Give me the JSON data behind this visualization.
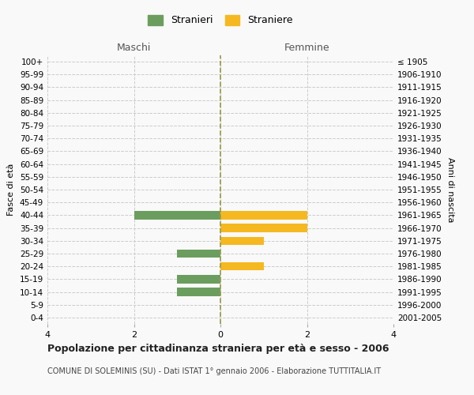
{
  "age_groups": [
    "100+",
    "95-99",
    "90-94",
    "85-89",
    "80-84",
    "75-79",
    "70-74",
    "65-69",
    "60-64",
    "55-59",
    "50-54",
    "45-49",
    "40-44",
    "35-39",
    "30-34",
    "25-29",
    "20-24",
    "15-19",
    "10-14",
    "5-9",
    "0-4"
  ],
  "birth_years": [
    "≤ 1905",
    "1906-1910",
    "1911-1915",
    "1916-1920",
    "1921-1925",
    "1926-1930",
    "1931-1935",
    "1936-1940",
    "1941-1945",
    "1946-1950",
    "1951-1955",
    "1956-1960",
    "1961-1965",
    "1966-1970",
    "1971-1975",
    "1976-1980",
    "1981-1985",
    "1986-1990",
    "1991-1995",
    "1996-2000",
    "2001-2005"
  ],
  "maschi": [
    0,
    0,
    0,
    0,
    0,
    0,
    0,
    0,
    0,
    0,
    0,
    0,
    2,
    0,
    0,
    1,
    0,
    1,
    1,
    0,
    0
  ],
  "femmine": [
    0,
    0,
    0,
    0,
    0,
    0,
    0,
    0,
    0,
    0,
    0,
    0,
    2,
    2,
    1,
    0,
    1,
    0,
    0,
    0,
    0
  ],
  "male_color": "#6b9e5e",
  "female_color": "#f5b820",
  "male_label": "Stranieri",
  "female_label": "Straniere",
  "header_left": "Maschi",
  "header_right": "Femmine",
  "ylabel_left": "Fasce di età",
  "ylabel_right": "Anni di nascita",
  "title": "Popolazione per cittadinanza straniera per età e sesso - 2006",
  "subtitle": "COMUNE DI SOLEMINIS (SU) - Dati ISTAT 1° gennaio 2006 - Elaborazione TUTTITALIA.IT",
  "xlim": 4,
  "background_color": "#f9f9f9",
  "grid_color": "#cccccc",
  "center_line_color": "#999944"
}
